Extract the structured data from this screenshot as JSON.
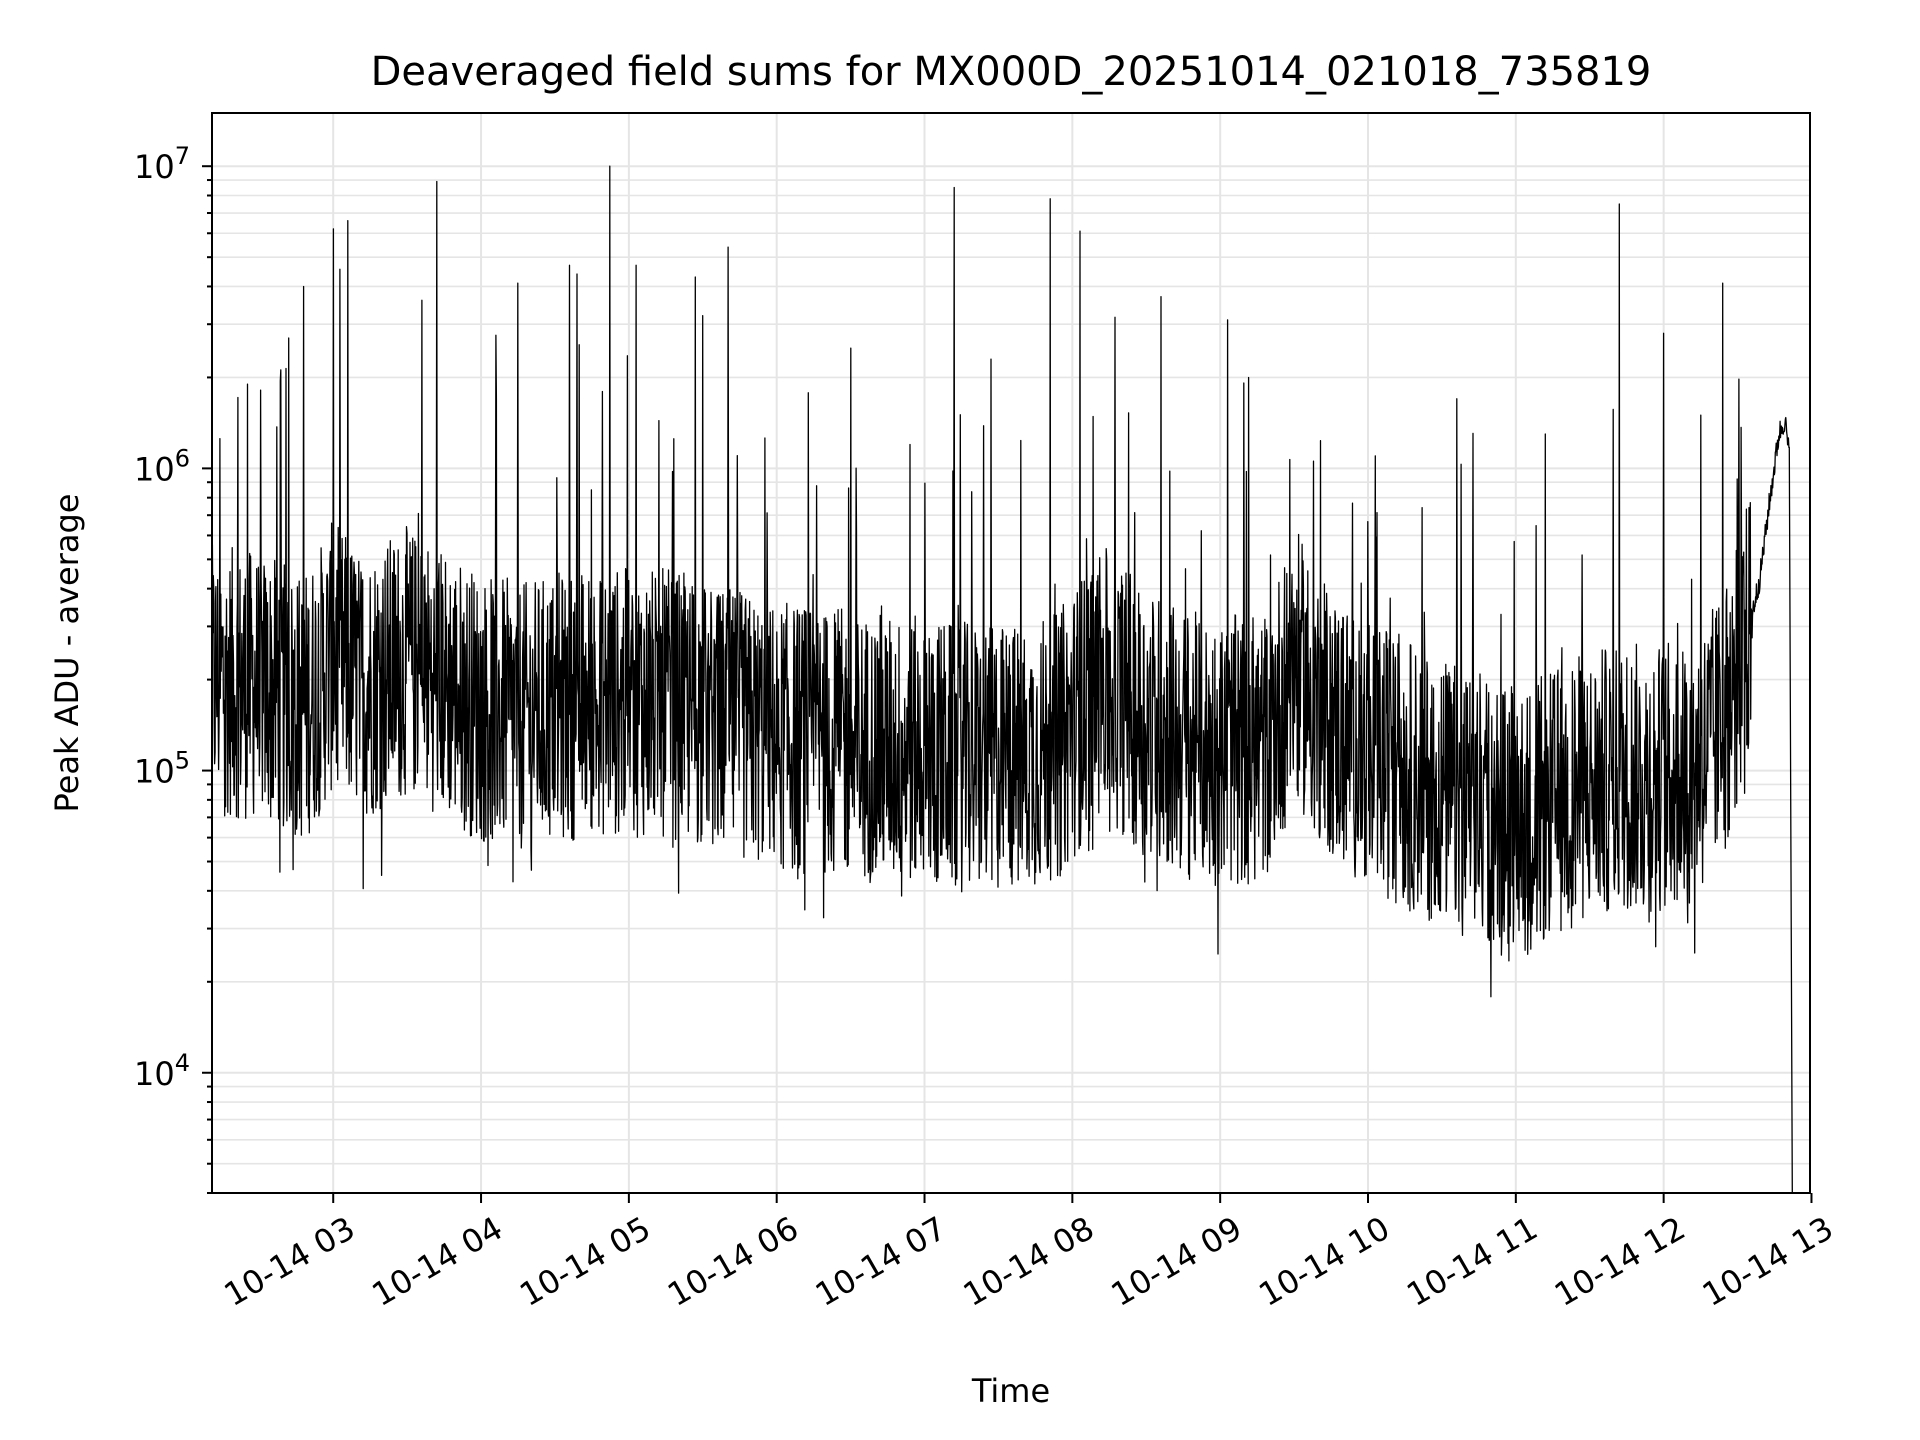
{
  "chart_data": {
    "type": "line",
    "title": "Deaveraged field sums for MX000D_20251014_021018_735819",
    "xlabel": "Time",
    "ylabel": "Peak ADU - average",
    "yscale": "log",
    "ylim": [
      4000,
      15000000
    ],
    "xlim_hours": [
      2.18,
      12.99
    ],
    "grid": true,
    "line_color": "#000000",
    "grid_color": "#e5e5e5",
    "x_ticks": [
      {
        "hour": 3,
        "label": "10-14 03"
      },
      {
        "hour": 4,
        "label": "10-14 04"
      },
      {
        "hour": 5,
        "label": "10-14 05"
      },
      {
        "hour": 6,
        "label": "10-14 06"
      },
      {
        "hour": 7,
        "label": "10-14 07"
      },
      {
        "hour": 8,
        "label": "10-14 08"
      },
      {
        "hour": 9,
        "label": "10-14 09"
      },
      {
        "hour": 10,
        "label": "10-14 10"
      },
      {
        "hour": 11,
        "label": "10-14 11"
      },
      {
        "hour": 12,
        "label": "10-14 12"
      },
      {
        "hour": 13,
        "label": "10-14 13"
      }
    ],
    "y_ticks": [
      {
        "value": 10000,
        "base": "10",
        "exp": "4"
      },
      {
        "value": 100000,
        "base": "10",
        "exp": "5"
      },
      {
        "value": 1000000,
        "base": "10",
        "exp": "6"
      },
      {
        "value": 10000000,
        "base": "10",
        "exp": "7"
      }
    ],
    "series": [
      {
        "name": "deaveraged field sums",
        "baseline": [
          [
            2.18,
            200000
          ],
          [
            2.5,
            190000
          ],
          [
            2.8,
            160000
          ],
          [
            3.0,
            240000
          ],
          [
            3.2,
            190000
          ],
          [
            3.5,
            230000
          ],
          [
            3.8,
            190000
          ],
          [
            4.0,
            160000
          ],
          [
            4.3,
            150000
          ],
          [
            4.6,
            165000
          ],
          [
            5.0,
            170000
          ],
          [
            5.3,
            165000
          ],
          [
            5.6,
            145000
          ],
          [
            6.0,
            130000
          ],
          [
            6.3,
            125000
          ],
          [
            6.6,
            120000
          ],
          [
            7.0,
            115000
          ],
          [
            7.3,
            110000
          ],
          [
            7.6,
            110000
          ],
          [
            7.9,
            120000
          ],
          [
            8.2,
            200000
          ],
          [
            8.5,
            145000
          ],
          [
            8.8,
            120000
          ],
          [
            9.0,
            115000
          ],
          [
            9.3,
            120000
          ],
          [
            9.5,
            230000
          ],
          [
            9.7,
            150000
          ],
          [
            10.0,
            115000
          ],
          [
            10.3,
            95000
          ],
          [
            10.6,
            80000
          ],
          [
            10.9,
            72000
          ],
          [
            11.1,
            70000
          ],
          [
            11.4,
            85000
          ],
          [
            11.7,
            95000
          ],
          [
            12.0,
            95000
          ],
          [
            12.2,
            100000
          ],
          [
            12.4,
            140000
          ],
          [
            12.55,
            260000
          ],
          [
            12.65,
            430000
          ],
          [
            12.72,
            800000
          ],
          [
            12.78,
            1300000
          ],
          [
            12.82,
            1450000
          ],
          [
            12.85,
            1100000
          ],
          [
            12.87,
            4000
          ]
        ],
        "spikes": [
          [
            2.42,
            1900000
          ],
          [
            2.7,
            2700000
          ],
          [
            2.8,
            4000000
          ],
          [
            3.0,
            6200000
          ],
          [
            3.1,
            6600000
          ],
          [
            3.7,
            8900000
          ],
          [
            3.6,
            3600000
          ],
          [
            4.25,
            4100000
          ],
          [
            4.6,
            4700000
          ],
          [
            4.65,
            4400000
          ],
          [
            4.87,
            10000000
          ],
          [
            5.05,
            4700000
          ],
          [
            5.45,
            4300000
          ],
          [
            5.5,
            3200000
          ],
          [
            5.67,
            5400000
          ],
          [
            6.5,
            2500000
          ],
          [
            7.2,
            8500000
          ],
          [
            7.45,
            2300000
          ],
          [
            7.85,
            7800000
          ],
          [
            8.05,
            6100000
          ],
          [
            8.6,
            3700000
          ],
          [
            9.05,
            3100000
          ],
          [
            10.05,
            1100000
          ],
          [
            10.6,
            1700000
          ],
          [
            11.7,
            7500000
          ],
          [
            12.0,
            2800000
          ],
          [
            12.4,
            4100000
          ],
          [
            12.25,
            1500000
          ],
          [
            11.2,
            1300000
          ],
          [
            6.9,
            1200000
          ]
        ]
      }
    ]
  }
}
